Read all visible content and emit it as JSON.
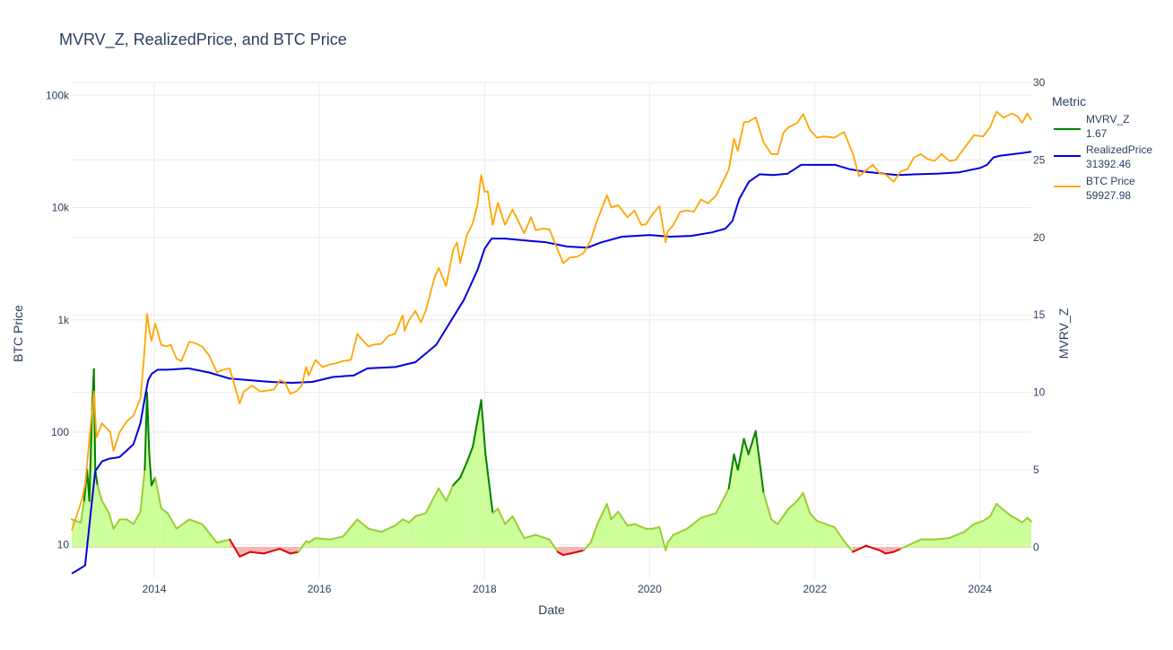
{
  "chart_data": {
    "type": "line",
    "title": "MVRV_Z, RealizedPrice, and BTC Price",
    "xlabel": "Date",
    "ylabel_left": "BTC Price",
    "ylabel_right": "MVRV_Z",
    "y_left_scale": "log",
    "y_left_range": [
      5,
      130000
    ],
    "y_left_ticks": [
      "10",
      "100",
      "1k",
      "10k",
      "100k"
    ],
    "y_left_tick_values": [
      10,
      100,
      1000,
      10000,
      100000
    ],
    "y_right_range": [
      -2,
      30
    ],
    "y_right_ticks": [
      "0",
      "5",
      "10",
      "15",
      "20",
      "25",
      "30"
    ],
    "y_right_tick_values": [
      0,
      5,
      10,
      15,
      20,
      25,
      30
    ],
    "x_range": [
      "2013-01-01",
      "2024-08-15"
    ],
    "x_ticks": [
      "2014",
      "2016",
      "2018",
      "2020",
      "2022",
      "2024"
    ],
    "x_tick_values": [
      "2014-01-01",
      "2016-01-01",
      "2018-01-01",
      "2020-01-01",
      "2022-01-01",
      "2024-01-01"
    ],
    "grid": true,
    "legend": {
      "title": "Metric",
      "placement": "right",
      "entries": [
        {
          "name": "MVRV_Z",
          "value": "1.67",
          "color": "#008000"
        },
        {
          "name": "RealizedPrice",
          "value": "31392.46",
          "color": "#0000dd"
        },
        {
          "name": "BTC Price",
          "value": "59927.98",
          "color": "#ffa500"
        }
      ]
    },
    "colors": {
      "mvrv_line": "#9acd32",
      "mvrv_high": "#008000",
      "mvrv_negative": "#e00000",
      "mvrv_fill_positive": "#ccff99",
      "mvrv_fill_negative": "#f4b4b4",
      "grid": "#ebebeb"
    },
    "series": [
      {
        "name": "BTC Price",
        "axis": "left",
        "x": [
          "2013-01-01",
          "2013-02-15",
          "2013-03-01",
          "2013-04-09",
          "2013-04-20",
          "2013-05-15",
          "2013-06-20",
          "2013-07-05",
          "2013-08-01",
          "2013-09-01",
          "2013-10-01",
          "2013-11-01",
          "2013-11-15",
          "2013-11-30",
          "2013-12-10",
          "2013-12-20",
          "2014-01-05",
          "2014-02-01",
          "2014-02-25",
          "2014-03-15",
          "2014-04-10",
          "2014-05-01",
          "2014-06-05",
          "2014-07-01",
          "2014-08-01",
          "2014-09-01",
          "2014-10-05",
          "2014-11-01",
          "2014-12-01",
          "2015-01-14",
          "2015-02-01",
          "2015-03-10",
          "2015-04-15",
          "2015-05-15",
          "2015-06-15",
          "2015-07-10",
          "2015-08-01",
          "2015-08-25",
          "2015-09-20",
          "2015-10-15",
          "2015-11-04",
          "2015-11-15",
          "2015-12-15",
          "2016-01-15",
          "2016-02-15",
          "2016-03-15",
          "2016-04-15",
          "2016-05-20",
          "2016-06-17",
          "2016-07-10",
          "2016-08-05",
          "2016-09-01",
          "2016-10-01",
          "2016-11-01",
          "2016-12-01",
          "2017-01-04",
          "2017-01-12",
          "2017-02-01",
          "2017-03-01",
          "2017-03-25",
          "2017-04-15",
          "2017-05-25",
          "2017-06-12",
          "2017-07-15",
          "2017-08-15",
          "2017-09-01",
          "2017-09-15",
          "2017-10-15",
          "2017-11-10",
          "2017-11-30",
          "2017-12-17",
          "2018-01-01",
          "2018-01-15",
          "2018-02-06",
          "2018-03-01",
          "2018-04-01",
          "2018-05-05",
          "2018-06-25",
          "2018-07-25",
          "2018-08-15",
          "2018-09-15",
          "2018-10-15",
          "2018-11-20",
          "2018-12-15",
          "2019-01-15",
          "2019-02-15",
          "2019-03-15",
          "2019-04-15",
          "2019-05-15",
          "2019-06-26",
          "2019-07-15",
          "2019-08-15",
          "2019-09-25",
          "2019-10-26",
          "2019-11-25",
          "2019-12-15",
          "2020-01-15",
          "2020-02-13",
          "2020-03-12",
          "2020-03-20",
          "2020-04-15",
          "2020-05-15",
          "2020-06-15",
          "2020-07-15",
          "2020-08-15",
          "2020-09-15",
          "2020-10-21",
          "2020-11-15",
          "2020-12-16",
          "2021-01-08",
          "2021-01-25",
          "2021-02-21",
          "2021-03-13",
          "2021-04-14",
          "2021-05-19",
          "2021-06-22",
          "2021-07-20",
          "2021-08-15",
          "2021-09-07",
          "2021-10-15",
          "2021-11-10",
          "2021-12-10",
          "2022-01-10",
          "2022-02-10",
          "2022-03-28",
          "2022-05-10",
          "2022-06-18",
          "2022-07-15",
          "2022-08-15",
          "2022-09-15",
          "2022-10-15",
          "2022-11-09",
          "2022-12-15",
          "2023-01-15",
          "2023-02-15",
          "2023-03-15",
          "2023-04-14",
          "2023-05-15",
          "2023-06-15",
          "2023-07-15",
          "2023-08-18",
          "2023-09-15",
          "2023-10-24",
          "2023-12-05",
          "2024-01-15",
          "2024-02-15",
          "2024-03-14",
          "2024-04-15",
          "2024-05-20",
          "2024-06-15",
          "2024-07-05",
          "2024-07-29",
          "2024-08-15"
        ],
        "y": [
          13.3,
          25,
          34,
          230,
          90,
          120,
          100,
          68,
          100,
          125,
          140,
          200,
          420,
          1130,
          800,
          650,
          930,
          600,
          580,
          600,
          450,
          430,
          640,
          620,
          580,
          480,
          340,
          360,
          370,
          180,
          230,
          260,
          230,
          235,
          240,
          290,
          280,
          220,
          230,
          260,
          380,
          320,
          440,
          380,
          400,
          410,
          430,
          440,
          750,
          660,
          580,
          605,
          610,
          720,
          750,
          1100,
          800,
          1000,
          1200,
          950,
          1200,
          2400,
          2900,
          2000,
          4200,
          4900,
          3200,
          5700,
          7300,
          10500,
          19500,
          13800,
          14000,
          7000,
          11000,
          7000,
          9600,
          5900,
          8200,
          6300,
          6500,
          6400,
          4200,
          3200,
          3600,
          3650,
          3950,
          5100,
          7800,
          12900,
          10000,
          10500,
          8200,
          9400,
          7000,
          7100,
          8800,
          10300,
          4900,
          6100,
          7000,
          9200,
          9400,
          9200,
          11800,
          10900,
          12800,
          16200,
          21800,
          41000,
          32000,
          57500,
          58000,
          63500,
          38000,
          30000,
          29800,
          46500,
          52000,
          57000,
          68000,
          49000,
          42000,
          43000,
          42000,
          47000,
          30000,
          19000,
          21500,
          24000,
          20000,
          19800,
          17000,
          21000,
          22000,
          28000,
          30000,
          27000,
          26000,
          30000,
          26000,
          26500,
          34000,
          44000,
          43000,
          52000,
          71500,
          63000,
          69000,
          65000,
          57000,
          69000,
          59928
        ]
      },
      {
        "name": "RealizedPrice",
        "axis": "left",
        "x": [
          "2013-01-01",
          "2013-02-01",
          "2013-03-01",
          "2013-04-01",
          "2013-04-15",
          "2013-05-15",
          "2013-06-15",
          "2013-08-01",
          "2013-10-01",
          "2013-11-01",
          "2013-11-20",
          "2013-12-05",
          "2013-12-20",
          "2014-01-15",
          "2014-03-01",
          "2014-06-01",
          "2014-09-01",
          "2014-12-01",
          "2015-03-01",
          "2015-06-01",
          "2015-09-01",
          "2015-12-01",
          "2016-03-01",
          "2016-06-01",
          "2016-08-01",
          "2016-12-01",
          "2017-03-01",
          "2017-06-01",
          "2017-08-01",
          "2017-10-01",
          "2017-12-01",
          "2018-01-01",
          "2018-02-01",
          "2018-04-01",
          "2018-07-01",
          "2018-10-01",
          "2019-01-01",
          "2019-04-01",
          "2019-06-01",
          "2019-09-01",
          "2020-01-01",
          "2020-04-01",
          "2020-07-01",
          "2020-10-01",
          "2020-12-01",
          "2021-01-01",
          "2021-02-01",
          "2021-03-15",
          "2021-05-01",
          "2021-07-01",
          "2021-09-01",
          "2021-11-01",
          "2022-01-01",
          "2022-04-01",
          "2022-06-01",
          "2022-08-01",
          "2022-11-01",
          "2023-01-01",
          "2023-04-01",
          "2023-07-01",
          "2023-10-01",
          "2024-01-01",
          "2024-02-01",
          "2024-03-01",
          "2024-04-01",
          "2024-06-01",
          "2024-08-15"
        ],
        "y": [
          5.5,
          6,
          6.5,
          25,
          45,
          55,
          58,
          60,
          78,
          120,
          200,
          290,
          330,
          360,
          360,
          370,
          340,
          300,
          290,
          280,
          275,
          280,
          310,
          320,
          370,
          380,
          420,
          600,
          950,
          1500,
          2800,
          4300,
          5300,
          5300,
          5100,
          4900,
          4500,
          4400,
          4900,
          5500,
          5700,
          5500,
          5600,
          6000,
          6500,
          7600,
          12000,
          17000,
          19800,
          19500,
          20000,
          24000,
          24000,
          24000,
          22000,
          21000,
          20000,
          19500,
          19800,
          20100,
          20600,
          22500,
          24000,
          28000,
          29000,
          30000,
          31392
        ]
      },
      {
        "name": "MVRV_Z",
        "axis": "right",
        "x": [
          "2013-01-01",
          "2013-01-20",
          "2013-02-10",
          "2013-02-25",
          "2013-03-10",
          "2013-03-20",
          "2013-04-01",
          "2013-04-09",
          "2013-04-15",
          "2013-04-25",
          "2013-05-15",
          "2013-06-15",
          "2013-07-05",
          "2013-08-01",
          "2013-09-01",
          "2013-10-01",
          "2013-11-01",
          "2013-11-20",
          "2013-11-30",
          "2013-12-10",
          "2013-12-20",
          "2014-01-05",
          "2014-02-01",
          "2014-03-01",
          "2014-04-10",
          "2014-06-05",
          "2014-08-01",
          "2014-10-05",
          "2014-12-01",
          "2015-01-14",
          "2015-03-01",
          "2015-05-01",
          "2015-07-10",
          "2015-08-25",
          "2015-10-01",
          "2015-11-04",
          "2015-11-15",
          "2015-12-15",
          "2016-02-15",
          "2016-04-15",
          "2016-06-17",
          "2016-08-05",
          "2016-10-01",
          "2016-12-01",
          "2017-01-04",
          "2017-02-01",
          "2017-03-01",
          "2017-04-15",
          "2017-06-12",
          "2017-07-15",
          "2017-08-15",
          "2017-09-15",
          "2017-10-15",
          "2017-11-10",
          "2017-12-17",
          "2018-01-05",
          "2018-02-06",
          "2018-03-01",
          "2018-04-01",
          "2018-05-05",
          "2018-06-25",
          "2018-08-15",
          "2018-10-15",
          "2018-11-20",
          "2018-12-15",
          "2019-01-15",
          "2019-02-15",
          "2019-03-15",
          "2019-04-15",
          "2019-05-15",
          "2019-06-26",
          "2019-07-15",
          "2019-08-15",
          "2019-09-25",
          "2019-10-26",
          "2019-12-15",
          "2020-01-15",
          "2020-02-13",
          "2020-03-12",
          "2020-03-20",
          "2020-04-15",
          "2020-06-15",
          "2020-08-15",
          "2020-10-21",
          "2020-12-16",
          "2021-01-08",
          "2021-01-25",
          "2021-02-21",
          "2021-03-13",
          "2021-04-14",
          "2021-05-19",
          "2021-06-22",
          "2021-07-20",
          "2021-09-07",
          "2021-10-15",
          "2021-11-10",
          "2021-12-10",
          "2022-01-10",
          "2022-03-28",
          "2022-05-10",
          "2022-06-18",
          "2022-08-15",
          "2022-10-15",
          "2022-11-09",
          "2022-12-15",
          "2023-01-15",
          "2023-03-15",
          "2023-04-14",
          "2023-06-15",
          "2023-08-18",
          "2023-10-24",
          "2023-12-05",
          "2024-01-15",
          "2024-02-15",
          "2024-03-14",
          "2024-04-15",
          "2024-05-20",
          "2024-06-15",
          "2024-07-05",
          "2024-07-29",
          "2024-08-15"
        ],
        "y": [
          1.8,
          1.7,
          1.6,
          3,
          5,
          3,
          9,
          11.5,
          5,
          4,
          3,
          2.2,
          1.2,
          1.8,
          1.8,
          1.5,
          2.3,
          5,
          10,
          6,
          4,
          4.5,
          2.5,
          2.2,
          1.2,
          1.8,
          1.5,
          0.3,
          0.5,
          -0.6,
          -0.3,
          -0.4,
          -0.1,
          -0.4,
          -0.3,
          0.4,
          0.3,
          0.6,
          0.5,
          0.7,
          1.8,
          1.2,
          1.0,
          1.4,
          1.8,
          1.6,
          2.0,
          2.2,
          3.8,
          3.0,
          4.0,
          4.5,
          5.5,
          6.5,
          9.5,
          6.0,
          2.2,
          2.5,
          1.5,
          2.0,
          0.6,
          0.8,
          0.5,
          -0.3,
          -0.5,
          -0.4,
          -0.3,
          -0.2,
          0.3,
          1.5,
          2.8,
          1.8,
          2.3,
          1.4,
          1.5,
          1.2,
          1.2,
          1.3,
          -0.2,
          0.3,
          0.8,
          1.2,
          1.9,
          2.2,
          3.8,
          6.0,
          5.0,
          7.0,
          6.0,
          7.5,
          3.5,
          1.8,
          1.5,
          2.5,
          3.0,
          3.5,
          2.2,
          1.7,
          1.3,
          0.4,
          -0.3,
          0.1,
          -0.2,
          -0.4,
          -0.3,
          -0.1,
          0.3,
          0.5,
          0.5,
          0.6,
          1.0,
          1.5,
          1.7,
          2.0,
          2.8,
          2.4,
          2.0,
          1.8,
          1.6,
          1.9,
          1.67
        ]
      }
    ]
  }
}
